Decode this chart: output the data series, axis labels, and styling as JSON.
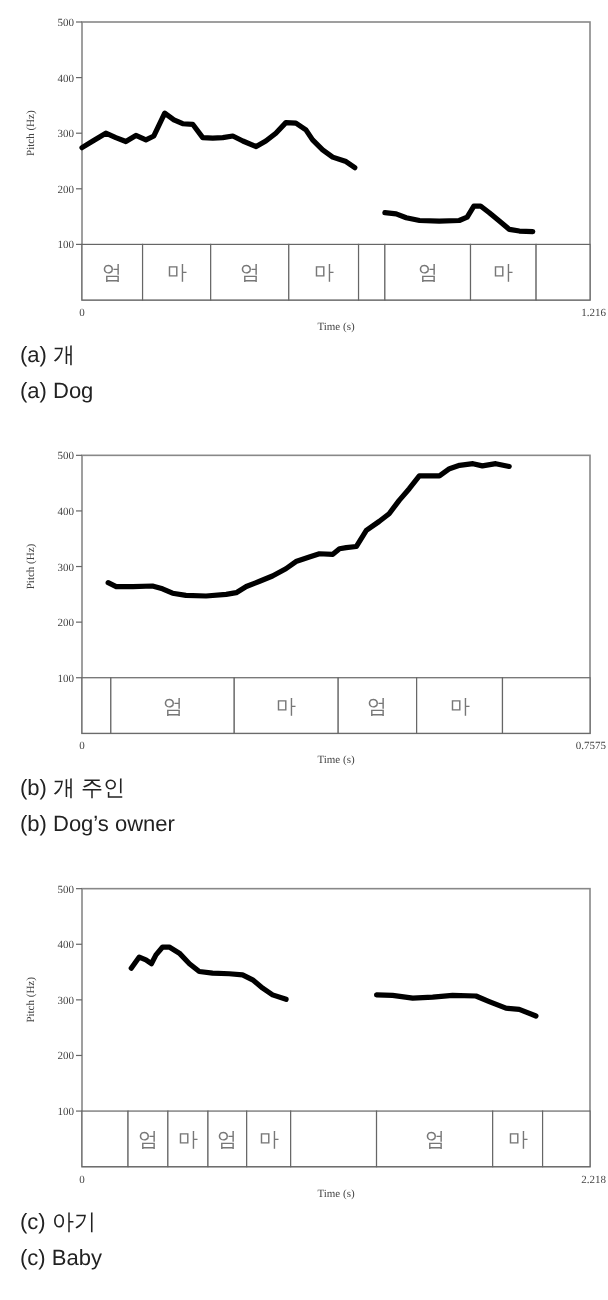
{
  "chart_data": [
    {
      "type": "line",
      "xlabel": "Time (s)",
      "ylabel": "Pitch (Hz)",
      "xlim": [
        0,
        1.216
      ],
      "ylim": [
        0,
        500
      ],
      "xticks": [
        0,
        1.216
      ],
      "yticks": [
        100,
        200,
        300,
        400,
        500
      ],
      "series": [
        {
          "color": "#000000",
          "x": [
            0,
            0.026,
            0.057,
            0.081,
            0.105,
            0.129,
            0.153,
            0.172,
            0.198,
            0.22,
            0.241,
            0.265,
            0.289,
            0.313,
            0.337,
            0.361,
            0.385,
            0.417,
            0.44,
            0.464,
            0.488,
            0.512,
            0.536,
            0.552,
            0.576,
            0.6,
            0.632,
            0.653
          ],
          "values": [
            274,
            286,
            300,
            292,
            285,
            296,
            288,
            295,
            336,
            324,
            317,
            316,
            292,
            291,
            292,
            295,
            286,
            276,
            286,
            300,
            319,
            318,
            306,
            288,
            270,
            257,
            249,
            238
          ]
        },
        {
          "color": "#000000",
          "x": [
            0.725,
            0.752,
            0.776,
            0.808,
            0.855,
            0.903,
            0.922,
            0.938,
            0.954,
            0.975,
            0.999,
            1.023,
            1.047,
            1.079
          ],
          "values": [
            157,
            155,
            148,
            143,
            142,
            143,
            149,
            169,
            169,
            157,
            142,
            127,
            124,
            123
          ]
        }
      ],
      "bands": [
        {
          "axis": "x",
          "from": 0,
          "to": 0.145,
          "label": "엄",
          "color": "#ffffff"
        },
        {
          "axis": "x",
          "from": 0.145,
          "to": 0.308,
          "label": "마",
          "color": "#ffffff"
        },
        {
          "axis": "x",
          "from": 0.308,
          "to": 0.495,
          "label": "엄",
          "color": "#ffffff"
        },
        {
          "axis": "x",
          "from": 0.495,
          "to": 0.662,
          "label": "마",
          "color": "#ffffff"
        },
        {
          "axis": "x",
          "from": 0.662,
          "to": 0.725,
          "color": "#ffffff"
        },
        {
          "axis": "x",
          "from": 0.725,
          "to": 0.93,
          "label": "엄",
          "color": "#ffffff"
        },
        {
          "axis": "x",
          "from": 0.93,
          "to": 1.087,
          "label": "마",
          "color": "#ffffff"
        },
        {
          "axis": "x",
          "from": 1.087,
          "to": 1.216,
          "color": "#ffffff"
        }
      ],
      "annotations": [
        "(a) 개",
        "(a) Dog"
      ]
    },
    {
      "type": "line",
      "xlabel": "Time (s)",
      "ylabel": "Pitch (Hz)",
      "xlim": [
        0,
        0.7575
      ],
      "ylim": [
        0,
        500
      ],
      "xticks": [
        0,
        0.7575
      ],
      "yticks": [
        100,
        200,
        300,
        400,
        500
      ],
      "series": [
        {
          "color": "#000000",
          "x": [
            0.039,
            0.051,
            0.076,
            0.105,
            0.12,
            0.135,
            0.155,
            0.185,
            0.215,
            0.23,
            0.245,
            0.264,
            0.284,
            0.304,
            0.319,
            0.339,
            0.354,
            0.374,
            0.384,
            0.394,
            0.409,
            0.424,
            0.443,
            0.458,
            0.473,
            0.488,
            0.503,
            0.518,
            0.533,
            0.548,
            0.563,
            0.583,
            0.597,
            0.617,
            0.637
          ],
          "values": [
            271,
            264,
            264,
            265,
            260,
            252,
            248,
            247,
            250,
            253,
            264,
            273,
            283,
            296,
            309,
            317,
            323,
            322,
            332,
            334,
            336,
            365,
            381,
            395,
            419,
            440,
            463,
            463,
            463,
            476,
            482,
            485,
            481,
            485,
            480
          ]
        }
      ],
      "bands": [
        {
          "axis": "x",
          "from": 0,
          "to": 0.043,
          "color": "#ffffff"
        },
        {
          "axis": "x",
          "from": 0.043,
          "to": 0.227,
          "label": "엄",
          "color": "#ffffff"
        },
        {
          "axis": "x",
          "from": 0.227,
          "to": 0.382,
          "label": "마",
          "color": "#ffffff"
        },
        {
          "axis": "x",
          "from": 0.382,
          "to": 0.499,
          "label": "엄",
          "color": "#ffffff"
        },
        {
          "axis": "x",
          "from": 0.499,
          "to": 0.627,
          "label": "마",
          "color": "#ffffff"
        },
        {
          "axis": "x",
          "from": 0.627,
          "to": 0.7575,
          "color": "#ffffff"
        }
      ],
      "annotations": [
        "(b) 개 주인",
        "(b) Dog’s owner"
      ]
    },
    {
      "type": "line",
      "xlabel": "Time (s)",
      "ylabel": "Pitch (Hz)",
      "xlim": [
        0,
        2.218
      ],
      "ylim": [
        0,
        500
      ],
      "xticks": [
        0,
        2.218
      ],
      "yticks": [
        100,
        200,
        300,
        400,
        500
      ],
      "series": [
        {
          "color": "#000000",
          "x": [
            0.215,
            0.25,
            0.279,
            0.303,
            0.323,
            0.352,
            0.381,
            0.425,
            0.469,
            0.512,
            0.57,
            0.643,
            0.701,
            0.745,
            0.789,
            0.832,
            0.891
          ],
          "values": [
            357,
            377,
            372,
            365,
            381,
            395,
            395,
            384,
            365,
            351,
            348,
            347,
            345,
            336,
            321,
            309,
            301
          ]
        },
        {
          "color": "#000000",
          "x": [
            1.286,
            1.356,
            1.444,
            1.531,
            1.618,
            1.72,
            1.778,
            1.851,
            1.909,
            1.982
          ],
          "values": [
            309,
            308,
            303,
            305,
            308,
            307,
            297,
            285,
            283,
            271
          ]
        }
      ],
      "bands": [
        {
          "axis": "x",
          "from": 0,
          "to": 0.201,
          "color": "#ffffff"
        },
        {
          "axis": "x",
          "from": 0.201,
          "to": 0.375,
          "label": "엄",
          "color": "#ffffff"
        },
        {
          "axis": "x",
          "from": 0.375,
          "to": 0.55,
          "label": "마",
          "color": "#ffffff"
        },
        {
          "axis": "x",
          "from": 0.55,
          "to": 0.719,
          "label": "엄",
          "color": "#ffffff"
        },
        {
          "axis": "x",
          "from": 0.719,
          "to": 0.911,
          "label": "마",
          "color": "#ffffff"
        },
        {
          "axis": "x",
          "from": 0.911,
          "to": 1.286,
          "color": "#ffffff"
        },
        {
          "axis": "x",
          "from": 1.286,
          "to": 1.793,
          "label": "엄",
          "color": "#ffffff"
        },
        {
          "axis": "x",
          "from": 1.793,
          "to": 2.011,
          "label": "마",
          "color": "#ffffff"
        },
        {
          "axis": "x",
          "from": 2.011,
          "to": 2.218,
          "color": "#ffffff"
        }
      ],
      "annotations": [
        "(c) 아기",
        "(c) Baby"
      ]
    }
  ]
}
